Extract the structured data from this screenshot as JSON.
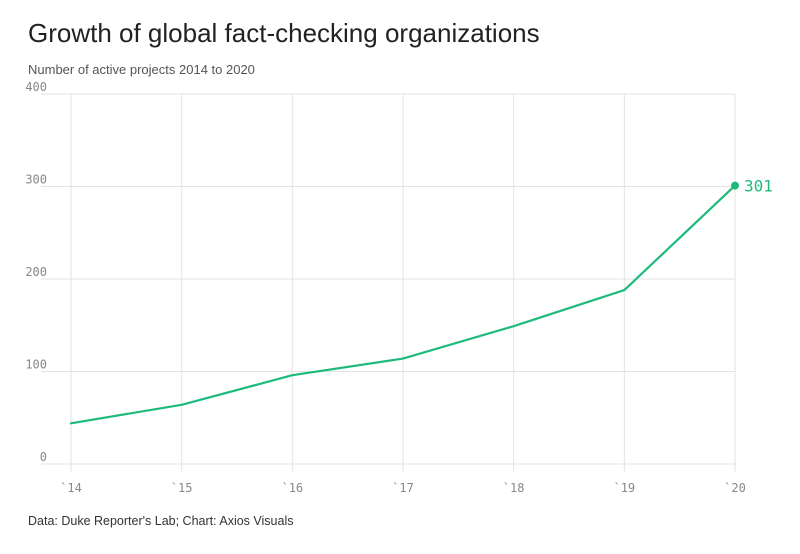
{
  "title": "Growth of global fact-checking organizations",
  "subtitle": "Number of active projects 2014 to 2020",
  "source": "Data: Duke Reporter's Lab; Chart: Axios Visuals",
  "colors": {
    "line": "#1dbb7b",
    "grid": "#e3e3e3",
    "tick": "#888888"
  },
  "chart_data": {
    "type": "line",
    "title": "Growth of global fact-checking organizations",
    "subtitle": "Number of active projects 2014 to 2020",
    "x": [
      "`14",
      "`15",
      "`16",
      "`17",
      "`18",
      "`19",
      "`20"
    ],
    "series": [
      {
        "values": [
          44,
          64,
          96,
          114,
          149,
          188,
          301
        ]
      }
    ],
    "ylim": [
      0,
      400
    ],
    "yticks": [
      "0",
      "100",
      "200",
      "300",
      "400"
    ],
    "grid": true,
    "end_label": "301"
  }
}
